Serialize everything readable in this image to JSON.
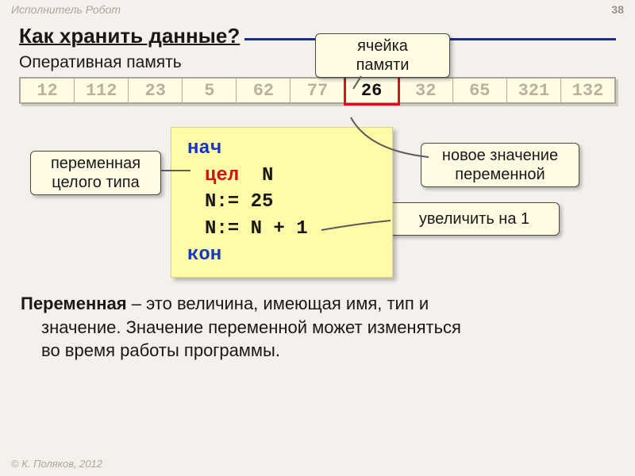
{
  "header": {
    "breadcrumb": "Исполнитель Робот",
    "page_number": "38"
  },
  "title": "Как хранить данные?",
  "subtitle": "Оперативная память",
  "memory": {
    "cells": [
      "12",
      "112",
      "23",
      "5",
      "62",
      "77",
      "26",
      "32",
      "65",
      "321",
      "132"
    ],
    "highlight_index": 6
  },
  "callouts": {
    "cell": {
      "lines": [
        "ячейка",
        "памяти"
      ]
    },
    "vtype": {
      "lines": [
        "переменная",
        "целого типа"
      ]
    },
    "newval": {
      "lines": [
        "новое значение",
        "переменной"
      ]
    },
    "inc": {
      "lines": [
        "увеличить на 1"
      ]
    }
  },
  "code": {
    "begin": "нач",
    "decl_kw": "цел",
    "decl_var": "N",
    "assign1": "N:= 25",
    "assign2": "N:= N + 1",
    "end": "кон"
  },
  "definition": {
    "term": "Переменная",
    "rest1": " – это величина, имеющая имя, тип и",
    "rest2": "значение. Значение переменной может изменяться",
    "rest3": "во время работы программы."
  },
  "footer": "© К. Поляков, 2012",
  "colors": {
    "accent_line": "#d8121a",
    "leader": "#5b5b5b"
  }
}
